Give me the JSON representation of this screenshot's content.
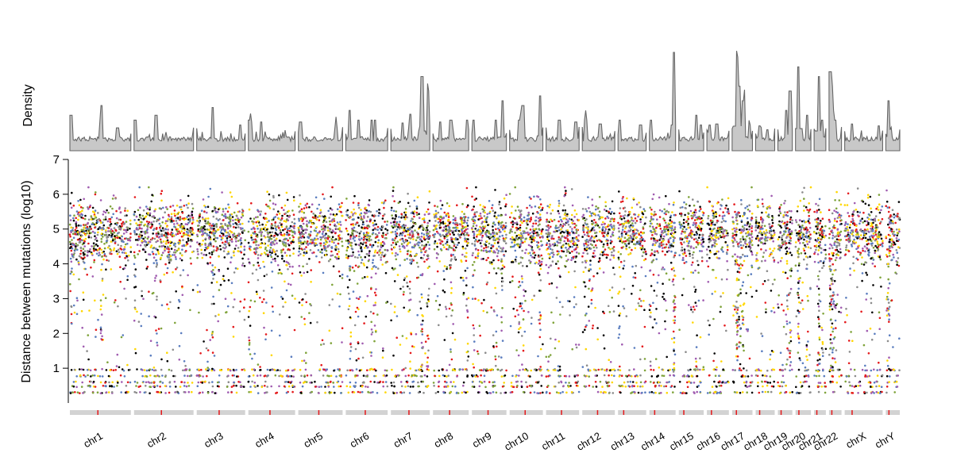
{
  "chart_data": {
    "type": "scatter",
    "subtype": "rainfall-plot",
    "title": "",
    "xlabel": "",
    "ylabel": "Distance between mutations (log10)",
    "density_label": "Density",
    "ylim": [
      0,
      7
    ],
    "yticks": [
      1,
      2,
      3,
      4,
      5,
      6,
      7
    ],
    "grid": false,
    "legend": "none",
    "point_colors": [
      "#000000",
      "#e41a1c",
      "#ffd700",
      "#5a7dbf",
      "#7fa33a",
      "#8c8c8c",
      "#a05cb0"
    ],
    "density_color": "#666666",
    "density_fill": "#c8c8c8",
    "ideogram_color": "#d3d3d3",
    "centromere_color": "#e41a1c",
    "chromosomes": [
      {
        "name": "chr1",
        "length": 249,
        "peaks": [
          [
            0.02,
            0.35
          ],
          [
            0.5,
            0.28
          ],
          [
            0.52,
            0.45
          ],
          [
            0.78,
            0.22
          ]
        ]
      },
      {
        "name": "chr2",
        "length": 243,
        "peaks": [
          [
            0.02,
            0.3
          ],
          [
            0.37,
            0.35
          ]
        ]
      },
      {
        "name": "chr3",
        "length": 198,
        "peaks": [
          [
            0.33,
            0.43
          ],
          [
            0.9,
            0.25
          ]
        ]
      },
      {
        "name": "chr4",
        "length": 191,
        "peaks": [
          [
            0.02,
            0.3
          ],
          [
            0.05,
            0.28
          ],
          [
            0.28,
            0.28
          ]
        ]
      },
      {
        "name": "chr5",
        "length": 181,
        "peaks": [
          [
            0.05,
            0.28
          ],
          [
            0.85,
            0.22
          ]
        ]
      },
      {
        "name": "chr6",
        "length": 171,
        "peaks": [
          [
            0.1,
            0.4
          ],
          [
            0.3,
            0.3
          ],
          [
            0.62,
            0.3
          ],
          [
            0.7,
            0.3
          ]
        ]
      },
      {
        "name": "chr7",
        "length": 159,
        "peaks": [
          [
            0.3,
            0.27
          ],
          [
            0.5,
            0.36
          ],
          [
            0.8,
            0.75
          ],
          [
            0.95,
            0.6
          ]
        ]
      },
      {
        "name": "chr8",
        "length": 146,
        "peaks": [
          [
            0.2,
            0.28
          ],
          [
            0.5,
            0.3
          ],
          [
            0.95,
            0.3
          ]
        ]
      },
      {
        "name": "chr9",
        "length": 141,
        "peaks": [
          [
            0.05,
            0.3
          ],
          [
            0.7,
            0.3
          ],
          [
            0.88,
            0.5
          ]
        ]
      },
      {
        "name": "chr10",
        "length": 136,
        "peaks": [
          [
            0.3,
            0.3
          ],
          [
            0.4,
            0.45
          ],
          [
            0.92,
            0.55
          ]
        ]
      },
      {
        "name": "chr11",
        "length": 135,
        "peaks": [
          [
            0.4,
            0.3
          ],
          [
            0.9,
            0.28
          ]
        ]
      },
      {
        "name": "chr12",
        "length": 133,
        "peaks": [
          [
            0.1,
            0.3
          ],
          [
            0.55,
            0.26
          ]
        ]
      },
      {
        "name": "chr13",
        "length": 115,
        "peaks": [
          [
            0.05,
            0.3
          ],
          [
            0.8,
            0.25
          ]
        ]
      },
      {
        "name": "chr14",
        "length": 107,
        "peaks": [
          [
            0.06,
            0.3
          ],
          [
            0.95,
            1.0
          ]
        ]
      },
      {
        "name": "chr15",
        "length": 102,
        "peaks": [
          [
            0.7,
            0.35
          ],
          [
            0.9,
            0.25
          ]
        ]
      },
      {
        "name": "chr16",
        "length": 90,
        "peaks": [
          [
            0.12,
            0.25
          ],
          [
            0.45,
            0.26
          ]
        ]
      },
      {
        "name": "chr17",
        "length": 83,
        "peaks": [
          [
            0.25,
            0.95
          ],
          [
            0.38,
            0.65
          ],
          [
            0.55,
            0.5
          ],
          [
            0.85,
            0.25
          ]
        ]
      },
      {
        "name": "chr18",
        "length": 78,
        "peaks": [
          [
            0.2,
            0.24
          ],
          [
            0.6,
            0.2
          ]
        ]
      },
      {
        "name": "chr19",
        "length": 59,
        "peaks": [
          [
            0.6,
            0.4
          ],
          [
            0.85,
            0.6
          ]
        ]
      },
      {
        "name": "chr20",
        "length": 63,
        "peaks": [
          [
            0.2,
            0.85
          ],
          [
            0.75,
            0.35
          ]
        ]
      },
      {
        "name": "chr21",
        "length": 48,
        "peaks": [
          [
            0.4,
            0.75
          ],
          [
            0.7,
            0.3
          ]
        ]
      },
      {
        "name": "chr22",
        "length": 51,
        "peaks": [
          [
            0.1,
            0.8
          ],
          [
            0.22,
            0.65
          ],
          [
            0.35,
            0.4
          ],
          [
            0.5,
            0.3
          ]
        ]
      },
      {
        "name": "chrX",
        "length": 155,
        "peaks": [
          [
            0.2,
            0.26
          ],
          [
            0.9,
            0.24
          ]
        ]
      },
      {
        "name": "chrY",
        "length": 57,
        "peaks": [
          [
            0.2,
            0.5
          ],
          [
            0.3,
            0.2
          ]
        ]
      }
    ]
  }
}
